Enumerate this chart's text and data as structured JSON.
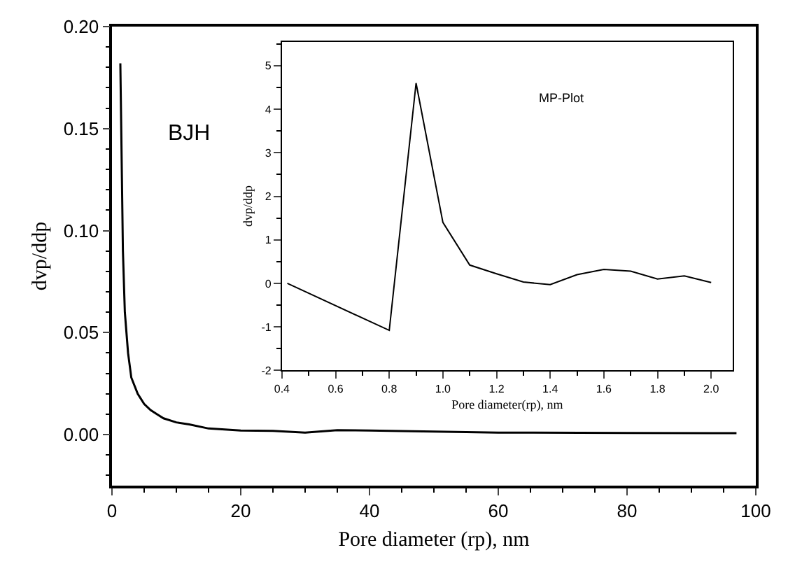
{
  "chart_data": [
    {
      "type": "line",
      "xlabel": "Pore diameter (rp), nm",
      "ylabel": "dvp/ddp",
      "annotations": [
        "BJH"
      ],
      "x": [
        1.3,
        1.7,
        2,
        2.5,
        3,
        4,
        5,
        6,
        7,
        8,
        10,
        12,
        15,
        20,
        25,
        30,
        35,
        40,
        50,
        60,
        80,
        97
      ],
      "values": [
        0.182,
        0.09,
        0.06,
        0.04,
        0.028,
        0.02,
        0.015,
        0.012,
        0.01,
        0.008,
        0.006,
        0.005,
        0.003,
        0.002,
        0.0018,
        0.001,
        0.0022,
        0.002,
        0.0015,
        0.001,
        0.0008,
        0.0007
      ],
      "color": "#000000",
      "xlim": [
        0,
        100
      ],
      "ylim": [
        -0.025,
        0.2
      ],
      "xticks": [
        0,
        20,
        40,
        60,
        80,
        100
      ],
      "yticks": [
        {
          "value": 0,
          "label": "0.00"
        },
        {
          "value": 0.05,
          "label": "0.05"
        },
        {
          "value": 0.1,
          "label": "0.10"
        },
        {
          "value": 0.15,
          "label": "0.15"
        },
        {
          "value": 0.2,
          "label": "0.20"
        }
      ]
    },
    {
      "type": "line",
      "xlabel": "Pore diameter(rp), nm",
      "ylabel": "dvp/ddp",
      "annotations": [
        "MP-Plot"
      ],
      "x": [
        0.42,
        0.8,
        0.9,
        1.0,
        1.1,
        1.2,
        1.3,
        1.4,
        1.5,
        1.6,
        1.7,
        1.8,
        1.9,
        2.0
      ],
      "values": [
        0,
        -1.08,
        4.6,
        1.4,
        0.42,
        0.22,
        0.03,
        -0.03,
        0.2,
        0.32,
        0.28,
        0.1,
        0.17,
        0.02
      ],
      "color": "#000000",
      "xlim": [
        0.4,
        2.08
      ],
      "ylim": [
        -2,
        5.55
      ],
      "xticks": [
        0.4,
        0.6,
        0.8,
        {
          "value": 1.0,
          "label": "1.0"
        },
        1.2,
        1.4,
        1.6,
        1.8,
        {
          "value": 2.0,
          "label": "2.0"
        }
      ],
      "yticks": [
        -2,
        -1,
        0,
        1,
        2,
        3,
        4,
        5
      ]
    }
  ]
}
